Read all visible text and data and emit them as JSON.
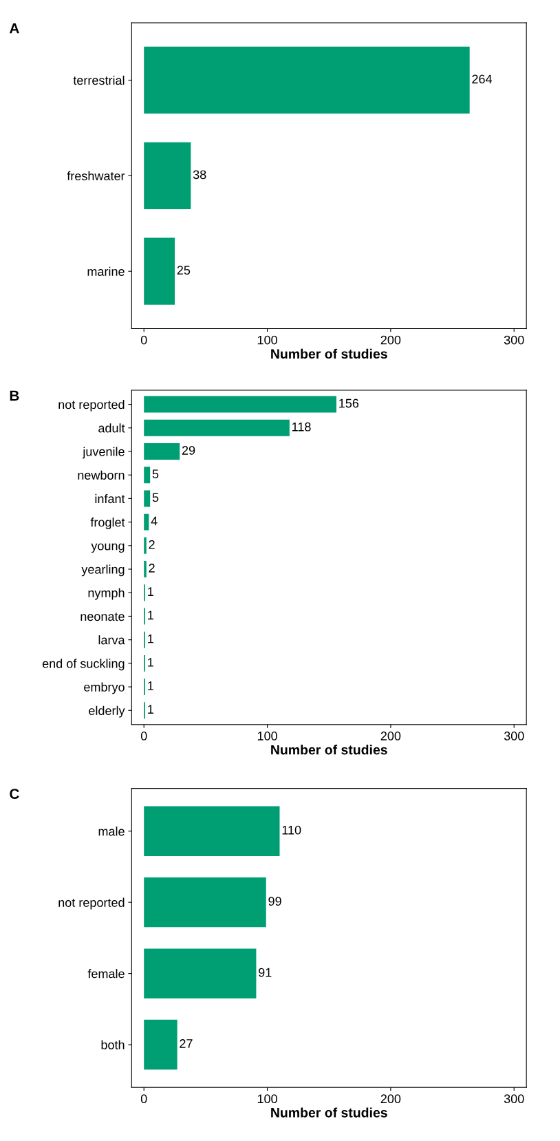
{
  "chart_data": [
    {
      "type": "bar",
      "title": "A",
      "orientation": "horizontal",
      "categories": [
        "terrestrial",
        "freshwater",
        "marine"
      ],
      "values": [
        264,
        38,
        25
      ],
      "color": "#009e73",
      "xlabel": "Number of studies",
      "xlim": [
        -10,
        310
      ],
      "xticks": [
        0,
        100,
        200,
        300
      ],
      "data_labels": true,
      "grid": false,
      "legend": false
    },
    {
      "type": "bar",
      "title": "B",
      "orientation": "horizontal",
      "categories": [
        "not reported",
        "adult",
        "juvenile",
        "newborn",
        "infant",
        "froglet",
        "young",
        "yearling",
        "nymph",
        "neonate",
        "larva",
        "end of suckling",
        "embryo",
        "elderly"
      ],
      "values": [
        156,
        118,
        29,
        5,
        5,
        4,
        2,
        2,
        1,
        1,
        1,
        1,
        1,
        1
      ],
      "color": "#009e73",
      "xlabel": "Number of studies",
      "xlim": [
        -10,
        310
      ],
      "xticks": [
        0,
        100,
        200,
        300
      ],
      "data_labels": true,
      "grid": false,
      "legend": false
    },
    {
      "type": "bar",
      "title": "C",
      "orientation": "horizontal",
      "categories": [
        "male",
        "not reported",
        "female",
        "both"
      ],
      "values": [
        110,
        99,
        91,
        27
      ],
      "color": "#009e73",
      "xlabel": "Number of studies",
      "xlim": [
        -10,
        310
      ],
      "xticks": [
        0,
        100,
        200,
        300
      ],
      "data_labels": true,
      "grid": false,
      "legend": false
    }
  ]
}
